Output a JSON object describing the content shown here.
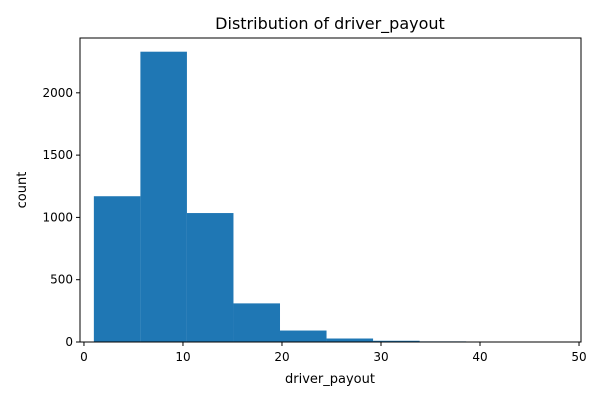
{
  "chart_data": {
    "type": "histogram",
    "title": "Distribution of driver_payout",
    "xlabel": "driver_payout",
    "ylabel": "count",
    "xlim": [
      -0.4,
      50.2
    ],
    "ylim": [
      0,
      2440
    ],
    "xticks": [
      0,
      10,
      20,
      30,
      40,
      50
    ],
    "yticks": [
      0,
      500,
      1000,
      1500,
      2000
    ],
    "bin_edges": [
      1.0,
      5.7,
      10.4,
      15.1,
      19.8,
      24.5,
      29.2,
      33.9,
      38.6,
      43.3,
      48.0
    ],
    "counts": [
      1170,
      2330,
      1035,
      310,
      92,
      28,
      10,
      5,
      3,
      2
    ],
    "bar_color": "#1f77b4",
    "grid": false
  }
}
